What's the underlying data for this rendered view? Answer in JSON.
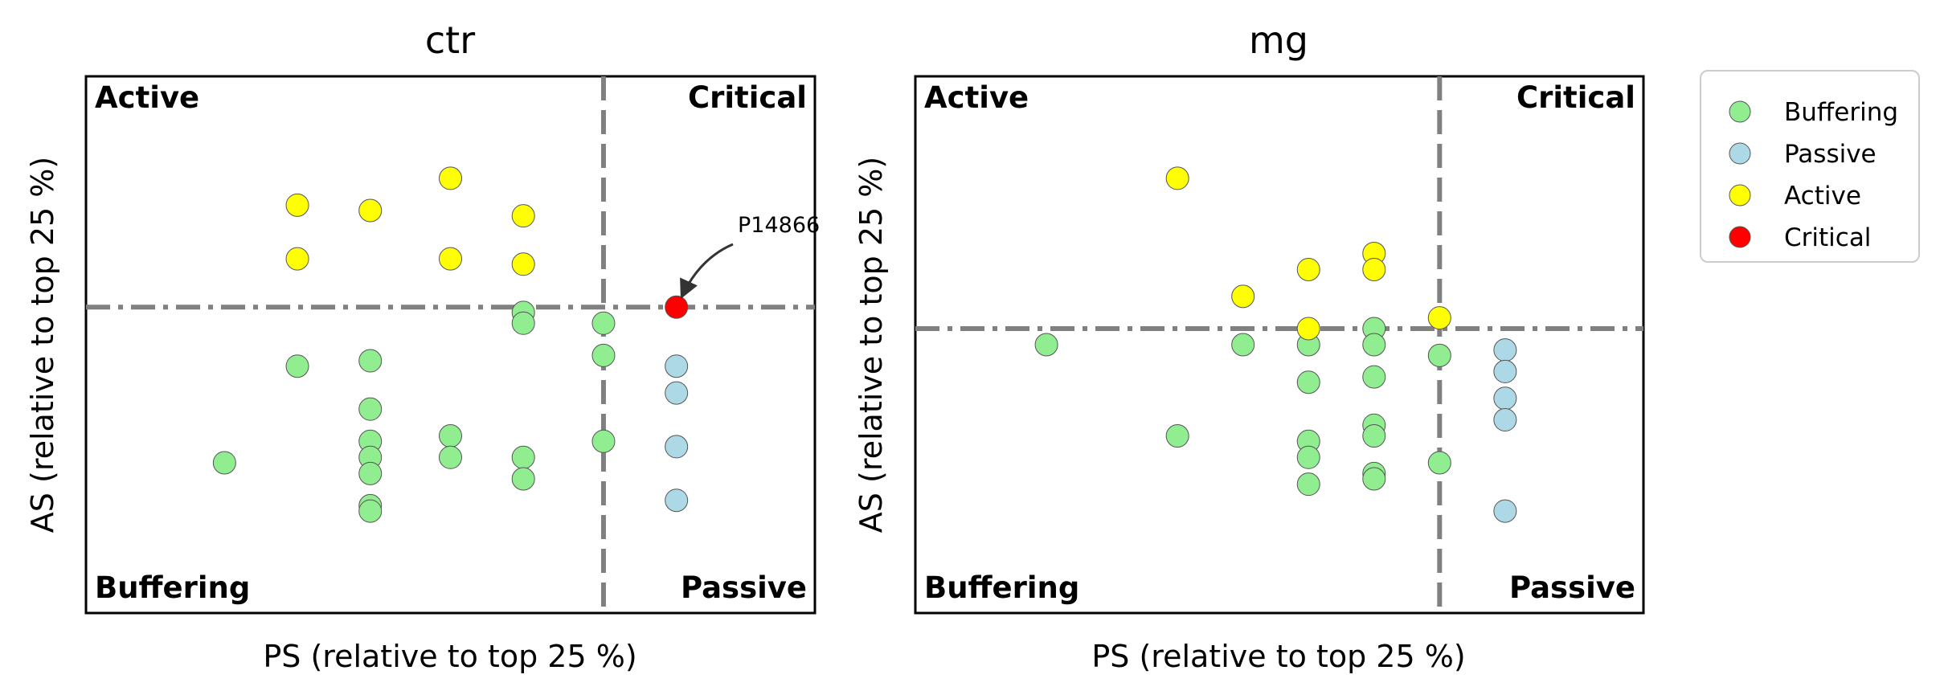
{
  "legend": {
    "placement": "outside right",
    "items": [
      {
        "label": "Buffering",
        "color": "#90EE90"
      },
      {
        "label": "Passive",
        "color": "#ADD8E6"
      },
      {
        "label": "Active",
        "color": "#FFFF00"
      },
      {
        "label": "Critical",
        "color": "#FF0000"
      }
    ]
  },
  "chart_data": [
    {
      "type": "scatter",
      "title": "ctr",
      "xlabel": "PS (relative to top 25 %)",
      "ylabel": "AS (relative to top 25 %)",
      "xlim": [
        0,
        10
      ],
      "ylim": [
        0,
        10
      ],
      "ticks": false,
      "grid": false,
      "x_threshold": 7.1,
      "y_threshold": 5.7,
      "quadrant_labels": {
        "top_left": "Active",
        "top_right": "Critical",
        "bottom_left": "Buffering",
        "bottom_right": "Passive"
      },
      "series": [
        {
          "name": "Buffering",
          "color": "#90EE90",
          "points": [
            [
              1.9,
              2.8
            ],
            [
              2.9,
              4.6
            ],
            [
              3.9,
              4.7
            ],
            [
              3.9,
              3.8
            ],
            [
              3.9,
              3.2
            ],
            [
              3.9,
              2.9
            ],
            [
              3.9,
              2.6
            ],
            [
              3.9,
              2.0
            ],
            [
              3.9,
              1.9
            ],
            [
              5.0,
              3.3
            ],
            [
              5.0,
              2.9
            ],
            [
              6.0,
              5.6
            ],
            [
              6.0,
              5.4
            ],
            [
              6.0,
              2.9
            ],
            [
              6.0,
              2.5
            ],
            [
              7.1,
              5.4
            ],
            [
              7.1,
              4.8
            ],
            [
              7.1,
              3.2
            ]
          ]
        },
        {
          "name": "Passive",
          "color": "#ADD8E6",
          "points": [
            [
              8.1,
              4.6
            ],
            [
              8.1,
              4.1
            ],
            [
              8.1,
              3.1
            ],
            [
              8.1,
              2.1
            ]
          ]
        },
        {
          "name": "Active",
          "color": "#FFFF00",
          "points": [
            [
              2.9,
              7.6
            ],
            [
              2.9,
              6.6
            ],
            [
              3.9,
              7.5
            ],
            [
              5.0,
              8.1
            ],
            [
              5.0,
              6.6
            ],
            [
              6.0,
              7.4
            ],
            [
              6.0,
              6.5
            ]
          ]
        },
        {
          "name": "Critical",
          "color": "#FF0000",
          "points": [
            [
              8.1,
              5.7
            ]
          ]
        }
      ],
      "annotations": [
        {
          "text": "P14866",
          "point": [
            8.1,
            5.7
          ]
        }
      ]
    },
    {
      "type": "scatter",
      "title": "mg",
      "xlabel": "PS (relative to top 25 %)",
      "ylabel": "AS (relative to top 25 %)",
      "xlim": [
        0,
        10
      ],
      "ylim": [
        0,
        10
      ],
      "ticks": false,
      "grid": false,
      "x_threshold": 7.2,
      "y_threshold": 5.3,
      "quadrant_labels": {
        "top_left": "Active",
        "top_right": "Critical",
        "bottom_left": "Buffering",
        "bottom_right": "Passive"
      },
      "series": [
        {
          "name": "Buffering",
          "color": "#90EE90",
          "points": [
            [
              1.8,
              5.0
            ],
            [
              3.6,
              3.3
            ],
            [
              4.5,
              5.0
            ],
            [
              5.4,
              5.0
            ],
            [
              5.4,
              4.3
            ],
            [
              5.4,
              3.2
            ],
            [
              5.4,
              2.9
            ],
            [
              5.4,
              2.4
            ],
            [
              6.3,
              5.3
            ],
            [
              6.3,
              5.0
            ],
            [
              6.3,
              4.4
            ],
            [
              6.3,
              3.5
            ],
            [
              6.3,
              3.3
            ],
            [
              6.3,
              2.6
            ],
            [
              6.3,
              2.5
            ],
            [
              7.2,
              4.8
            ],
            [
              7.2,
              2.8
            ]
          ]
        },
        {
          "name": "Passive",
          "color": "#ADD8E6",
          "points": [
            [
              8.1,
              4.9
            ],
            [
              8.1,
              4.5
            ],
            [
              8.1,
              4.0
            ],
            [
              8.1,
              3.6
            ],
            [
              8.1,
              1.9
            ]
          ]
        },
        {
          "name": "Active",
          "color": "#FFFF00",
          "points": [
            [
              3.6,
              8.1
            ],
            [
              4.5,
              5.9
            ],
            [
              5.4,
              6.4
            ],
            [
              5.4,
              5.3
            ],
            [
              6.3,
              6.7
            ],
            [
              6.3,
              6.4
            ],
            [
              7.2,
              5.5
            ]
          ]
        }
      ]
    }
  ]
}
